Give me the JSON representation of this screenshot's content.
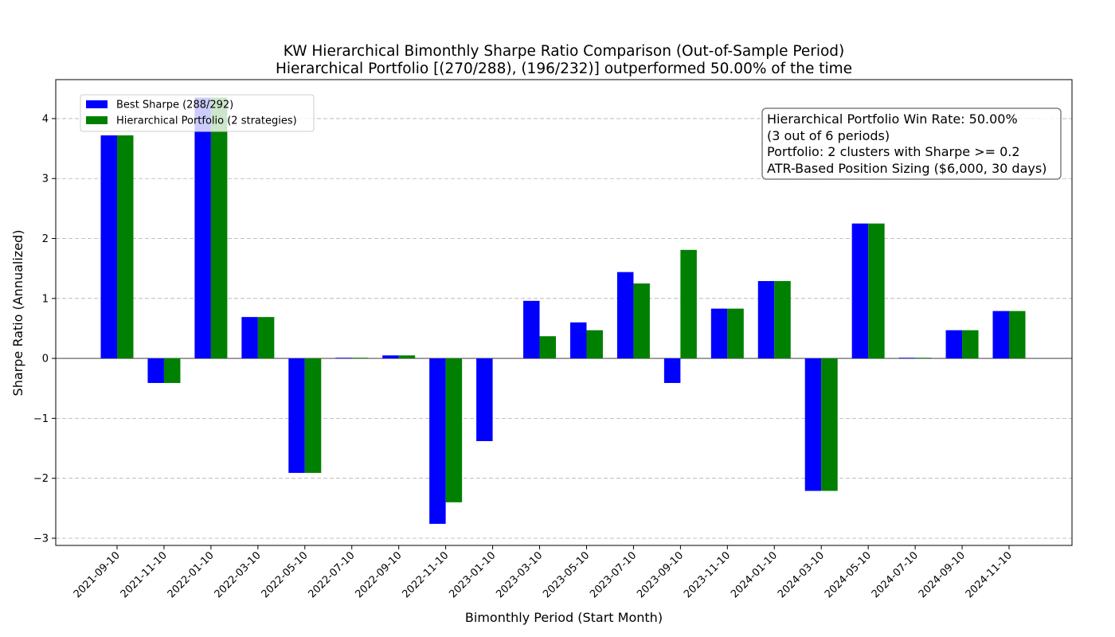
{
  "chart_data": {
    "type": "bar",
    "title": "KW Hierarchical Bimonthly Sharpe Ratio Comparison (Out-of-Sample Period)",
    "subtitle": "Hierarchical Portfolio [(270/288), (196/232)] outperformed 50.00% of the time",
    "xlabel": "Bimonthly Period (Start Month)",
    "ylabel": "Sharpe Ratio (Annualized)",
    "ylim": [
      -3.12,
      4.65
    ],
    "yticks": [
      -3,
      -2,
      -1,
      0,
      1,
      2,
      3,
      4
    ],
    "ytick_labels": [
      "−3",
      "−2",
      "−1",
      "0",
      "1",
      "2",
      "3",
      "4"
    ],
    "grid": true,
    "legend_position": "top-left",
    "categories": [
      "2021-09-10",
      "2021-11-10",
      "2022-01-10",
      "2022-03-10",
      "2022-05-10",
      "2022-07-10",
      "2022-09-10",
      "2022-11-10",
      "2023-01-10",
      "2023-03-10",
      "2023-05-10",
      "2023-07-10",
      "2023-09-10",
      "2023-11-10",
      "2024-01-10",
      "2024-03-10",
      "2024-05-10",
      "2024-07-10",
      "2024-09-10",
      "2024-11-10"
    ],
    "series": [
      {
        "name": "Best Sharpe (288/292)",
        "color": "#0000ff",
        "values": [
          3.72,
          -0.41,
          4.35,
          0.69,
          -1.91,
          0.01,
          0.05,
          -2.76,
          -1.38,
          0.96,
          0.6,
          1.44,
          -0.41,
          0.83,
          1.29,
          -2.21,
          2.25,
          0.01,
          0.47,
          0.79
        ]
      },
      {
        "name": "Hierarchical Portfolio (2 strategies)",
        "color": "#008000",
        "values": [
          3.72,
          -0.41,
          4.35,
          0.69,
          -1.91,
          0.01,
          0.05,
          -2.4,
          0.0,
          0.37,
          0.47,
          1.25,
          1.81,
          0.83,
          1.29,
          -2.21,
          2.25,
          0.01,
          0.47,
          0.79
        ]
      }
    ],
    "annotation": {
      "lines": [
        "Hierarchical Portfolio Win Rate: 50.00%",
        "(3 out of 6 periods)",
        "Portfolio: 2 clusters with Sharpe >= 0.2",
        "ATR-Based Position Sizing ($6,000, 30 days)"
      ]
    }
  }
}
